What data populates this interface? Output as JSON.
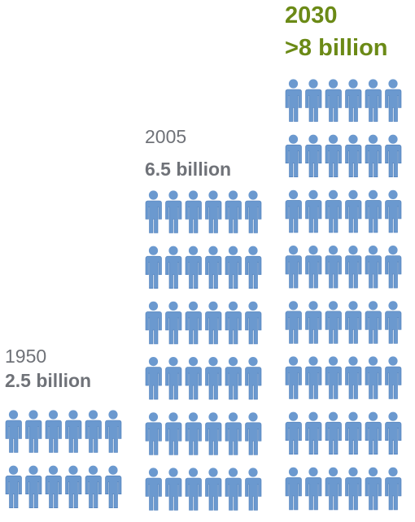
{
  "chart_data": {
    "type": "pictograph",
    "title": "",
    "unit": "billion",
    "colors": {
      "figure": "#6b99cf",
      "figure_dark": "#4f7fb9",
      "label": "#6f7278",
      "highlight_label": "#6b8a16"
    },
    "columns": [
      {
        "year": "1950",
        "value_label": "2.5 billion",
        "value": 2.5,
        "figures_per_row": 6,
        "rows": 2,
        "highlight": false
      },
      {
        "year": "2005",
        "value_label": "6.5 billion",
        "value": 6.5,
        "figures_per_row": 6,
        "rows": 6,
        "highlight": false
      },
      {
        "year": "2030",
        "value_label": ">8 billion",
        "value": 8,
        "figures_per_row": 6,
        "rows": 8,
        "highlight": true
      }
    ]
  }
}
